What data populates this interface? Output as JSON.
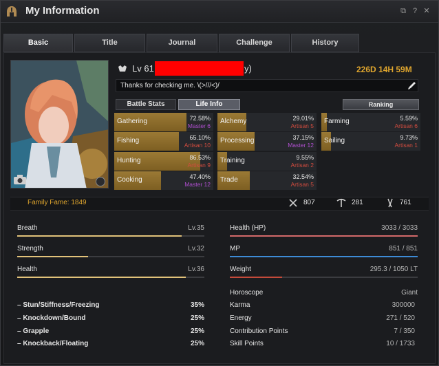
{
  "window": {
    "title": "My Information",
    "title_icon": "helmet-icon",
    "controls": [
      "restore-icon",
      "help-icon",
      "close-icon"
    ],
    "ctrl_glyphs": {
      "restore": "⧉",
      "help": "?",
      "close": "✕"
    }
  },
  "tabs": [
    {
      "label": "Basic",
      "active": true
    },
    {
      "label": "Title",
      "active": false
    },
    {
      "label": "Journal",
      "active": false
    },
    {
      "label": "Challenge",
      "active": false
    },
    {
      "label": "History",
      "active": false
    }
  ],
  "profile": {
    "level": "Lv 61",
    "name_suffix": "y)",
    "playtime": "226D 14H 59M",
    "intro": "Thanks for checking me. \\(>///<)/"
  },
  "subtabs": {
    "battle": "Battle Stats",
    "life": "Life Info",
    "ranking": "Ranking"
  },
  "life_skills": [
    {
      "name": "Gathering",
      "pct": "72.58%",
      "rank": "Master 6",
      "rank_color": "#b04fd0",
      "progress": 0.7258
    },
    {
      "name": "Alchemy",
      "pct": "29.01%",
      "rank": "Artisan 5",
      "rank_color": "#d24c3f",
      "progress": 0.2901
    },
    {
      "name": "Farming",
      "pct": "5.59%",
      "rank": "Artisan 6",
      "rank_color": "#d24c3f",
      "progress": 0.0559
    },
    {
      "name": "Fishing",
      "pct": "65.10%",
      "rank": "Artisan 10",
      "rank_color": "#d24c3f",
      "progress": 0.651
    },
    {
      "name": "Processing",
      "pct": "37.15%",
      "rank": "Master 12",
      "rank_color": "#b04fd0",
      "progress": 0.3715
    },
    {
      "name": "Sailing",
      "pct": "9.73%",
      "rank": "Artisan 1",
      "rank_color": "#d24c3f",
      "progress": 0.0973
    },
    {
      "name": "Hunting",
      "pct": "86.53%",
      "rank": "Artisan 9",
      "rank_color": "#d24c3f",
      "progress": 0.8653
    },
    {
      "name": "Training",
      "pct": "9.55%",
      "rank": "Artisan 2",
      "rank_color": "#d24c3f",
      "progress": 0.0955
    },
    {
      "name": "Cooking",
      "pct": "47.40%",
      "rank": "Master 12",
      "rank_color": "#b04fd0",
      "progress": 0.474
    },
    {
      "name": "Trade",
      "pct": "32.54%",
      "rank": "Artisan 5",
      "rank_color": "#d24c3f",
      "progress": 0.3254
    }
  ],
  "family": {
    "fame": "Family Fame: 1849",
    "combat": "807",
    "life": "281",
    "skill": "761"
  },
  "left_stats": [
    {
      "label": "Breath",
      "value": "Lv.35",
      "progress": 0.88,
      "color": "#e2c27a"
    },
    {
      "label": "Strength",
      "value": "Lv.32",
      "progress": 0.38,
      "color": "#e2c27a"
    },
    {
      "label": "Health",
      "value": "Lv.36",
      "progress": 0.9,
      "color": "#e2c27a"
    }
  ],
  "resist": [
    {
      "label": "– Stun/Stiffness/Freezing",
      "value": "35%"
    },
    {
      "label": "– Knockdown/Bound",
      "value": "25%"
    },
    {
      "label": "– Grapple",
      "value": "25%"
    },
    {
      "label": "– Knockback/Floating",
      "value": "25%"
    }
  ],
  "right_stats": [
    {
      "label": "Health (HP)",
      "value": "3033 / 3033",
      "progress": 1.0,
      "color": "#d46a6a"
    },
    {
      "label": "MP",
      "value": "851 / 851",
      "progress": 1.0,
      "color": "#3d8bd6"
    },
    {
      "label": "Weight",
      "value": "295.3 / 1050 LT",
      "progress": 0.28,
      "color": "#c44a3a"
    }
  ],
  "horoscope": {
    "label": "Horoscope",
    "value": "Giant"
  },
  "points": [
    {
      "label": "Karma",
      "value": "300000"
    },
    {
      "label": "Energy",
      "value": "271 / 520"
    },
    {
      "label": "Contribution Points",
      "value": "7 / 350"
    },
    {
      "label": "Skill Points",
      "value": "10 / 1733"
    }
  ]
}
